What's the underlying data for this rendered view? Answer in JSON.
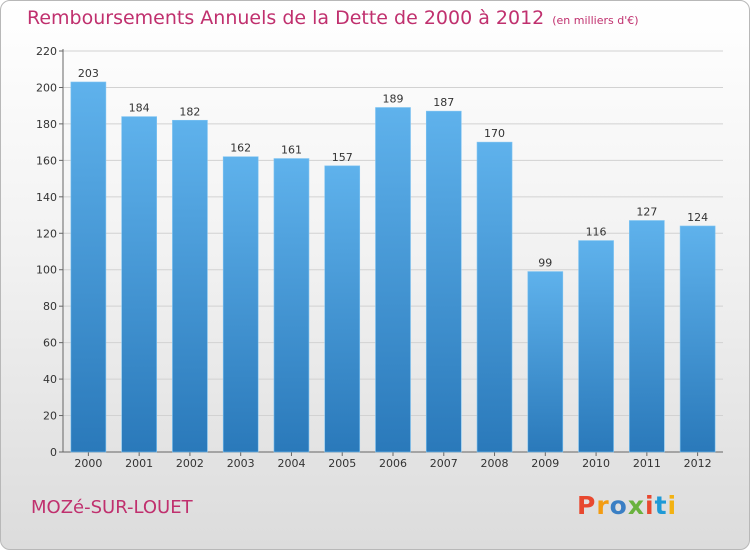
{
  "header": {
    "title": "Remboursements Annuels de la Dette de 2000 à 2012",
    "subtitle": "(en milliers d'€)"
  },
  "footer": {
    "commune": "MOZé-SUR-LOUET",
    "logo": "Proxiti"
  },
  "colors": {
    "title": "#c0306e",
    "bar_top": "#5fb2ec",
    "bar_bottom": "#2a79ba",
    "logo_letters": [
      "#e8482f",
      "#f39c12",
      "#3a7fc4",
      "#6ab23e",
      "#e8482f",
      "#1f9ad6",
      "#f3b212"
    ]
  },
  "chart_data": {
    "type": "bar",
    "categories": [
      "2000",
      "2001",
      "2002",
      "2003",
      "2004",
      "2005",
      "2006",
      "2007",
      "2008",
      "2009",
      "2010",
      "2011",
      "2012"
    ],
    "values": [
      203,
      184,
      182,
      162,
      161,
      157,
      189,
      187,
      170,
      99,
      116,
      127,
      124
    ],
    "ylim": [
      0,
      220
    ],
    "yticks": [
      0,
      20,
      40,
      60,
      80,
      100,
      120,
      140,
      160,
      180,
      200,
      220
    ],
    "grid": true,
    "data_labels": true
  }
}
